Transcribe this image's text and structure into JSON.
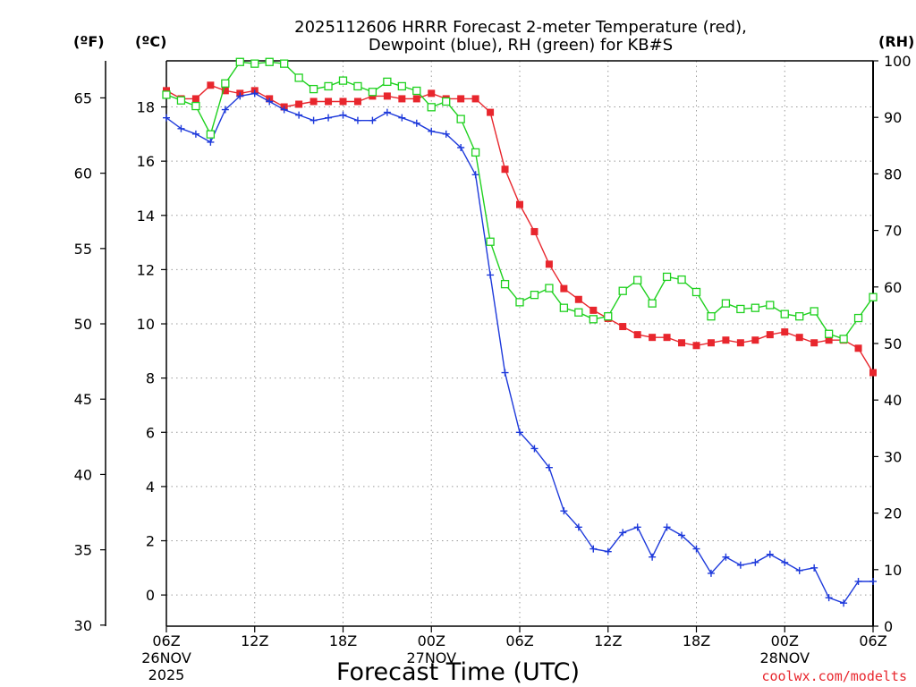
{
  "chart_data": {
    "type": "line",
    "title_line1": "2025112606 HRRR Forecast 2-meter Temperature (red),",
    "title_line2": "Dewpoint (blue), RH (green) for KB#S",
    "xlabel": "Forecast Time (UTC)",
    "credit": "coolwx.com/modelts",
    "axes": {
      "fahrenheit": {
        "label": "(ºF)",
        "ticks": [
          "30",
          "35",
          "40",
          "45",
          "50",
          "55",
          "60",
          "65"
        ]
      },
      "celsius": {
        "label": "(ºC)",
        "range": [
          -1.15,
          19.7
        ],
        "ticks": [
          "0",
          "2",
          "4",
          "6",
          "8",
          "10",
          "12",
          "14",
          "16",
          "18"
        ]
      },
      "rh": {
        "label": "(RH)",
        "range": [
          0,
          100
        ],
        "ticks": [
          "0",
          "10",
          "20",
          "30",
          "40",
          "50",
          "60",
          "70",
          "80",
          "90",
          "100"
        ]
      }
    },
    "x_range_hours": [
      0,
      48
    ],
    "x_ticks": [
      {
        "hour": 0,
        "label": "06Z",
        "sub1": "26NOV",
        "sub2": "2025"
      },
      {
        "hour": 6,
        "label": "12Z",
        "sub1": "",
        "sub2": ""
      },
      {
        "hour": 12,
        "label": "18Z",
        "sub1": "",
        "sub2": ""
      },
      {
        "hour": 18,
        "label": "00Z",
        "sub1": "27NOV",
        "sub2": ""
      },
      {
        "hour": 24,
        "label": "06Z",
        "sub1": "",
        "sub2": ""
      },
      {
        "hour": 30,
        "label": "12Z",
        "sub1": "",
        "sub2": ""
      },
      {
        "hour": 36,
        "label": "18Z",
        "sub1": "",
        "sub2": ""
      },
      {
        "hour": 42,
        "label": "00Z",
        "sub1": "28NOV",
        "sub2": ""
      },
      {
        "hour": 48,
        "label": "06Z",
        "sub1": "",
        "sub2": ""
      }
    ],
    "series": [
      {
        "name": "Temperature (C)",
        "color": "#e8262d",
        "marker": "filled-square",
        "values": [
          18.6,
          18.3,
          18.3,
          18.8,
          18.6,
          18.5,
          18.6,
          18.3,
          18.0,
          18.1,
          18.2,
          18.2,
          18.2,
          18.2,
          18.4,
          18.4,
          18.3,
          18.3,
          18.5,
          18.3,
          18.3,
          18.3,
          17.8,
          15.7,
          14.4,
          13.4,
          12.2,
          11.3,
          10.9,
          10.5,
          10.2,
          9.9,
          9.6,
          9.5,
          9.5,
          9.3,
          9.2,
          9.3,
          9.4,
          9.3,
          9.4,
          9.6,
          9.7,
          9.5,
          9.3,
          9.4,
          9.4,
          9.1,
          8.2
        ]
      },
      {
        "name": "Dewpoint (C)",
        "color": "#1e3adb",
        "marker": "plus",
        "values": [
          17.6,
          17.2,
          17.0,
          16.7,
          17.9,
          18.4,
          18.5,
          18.2,
          17.9,
          17.7,
          17.5,
          17.6,
          17.7,
          17.5,
          17.5,
          17.8,
          17.6,
          17.4,
          17.1,
          17.0,
          16.5,
          15.5,
          11.8,
          8.2,
          6.0,
          5.4,
          4.7,
          3.1,
          2.5,
          1.7,
          1.6,
          2.3,
          2.5,
          1.4,
          2.5,
          2.2,
          1.7,
          0.8,
          1.4,
          1.1,
          1.2,
          1.5,
          1.2,
          0.9,
          1.0,
          -0.1,
          -0.3,
          0.5,
          0.5
        ]
      },
      {
        "name": "RH (%)",
        "color": "#1fd11f",
        "marker": "open-square",
        "values": [
          94,
          93,
          92,
          87,
          96,
          99.8,
          99.5,
          99.8,
          99.5,
          97,
          95,
          95.5,
          96.5,
          95.5,
          94.5,
          96.3,
          95.5,
          94.7,
          91.8,
          92.8,
          89.7,
          83.8,
          68,
          60.5,
          57.3,
          58.6,
          59.8,
          56.3,
          55.5,
          54.3,
          54.8,
          59.3,
          61.2,
          57.1,
          61.8,
          61.3,
          59.1,
          54.8,
          57.1,
          56.1,
          56.3,
          56.8,
          55.2,
          54.8,
          55.7,
          51.7,
          50.8,
          54.5,
          58.2
        ]
      }
    ]
  }
}
